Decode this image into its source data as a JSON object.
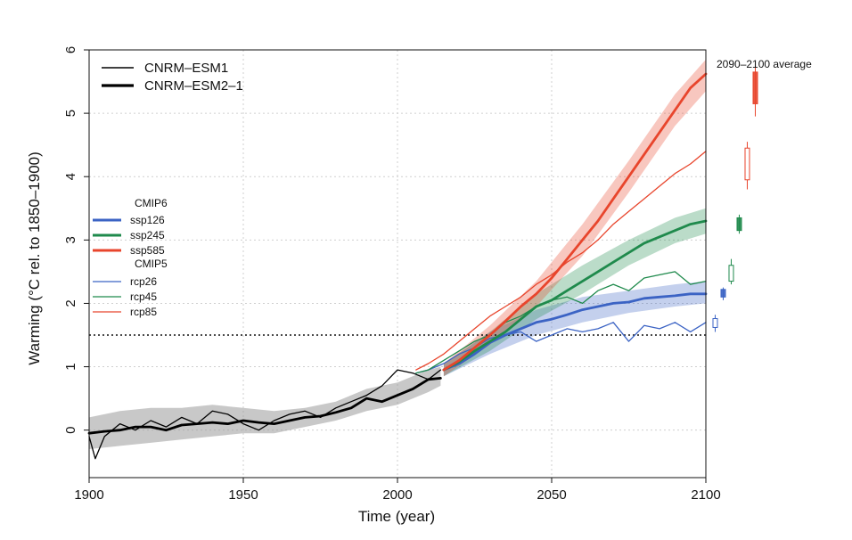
{
  "chart_data": {
    "type": "line",
    "title": "",
    "xlabel": "Time (year)",
    "ylabel": "Warming (°C rel. to 1850–1900)",
    "xlim": [
      1900,
      2100
    ],
    "ylim": [
      -0.75,
      6
    ],
    "xticks": [
      "1900",
      "1950",
      "2000",
      "2050",
      "2100"
    ],
    "yticks": [
      "0",
      "1",
      "2",
      "3",
      "4",
      "5",
      "6"
    ],
    "grid": true,
    "reference_line": 1.5,
    "legend_top": {
      "placement": "top-left",
      "entries": [
        {
          "label": "CNRM–ESM1",
          "style": "thin"
        },
        {
          "label": "CNRM–ESM2–1",
          "style": "thick"
        }
      ]
    },
    "legend_scenarios": {
      "placement": "center-left",
      "groups": [
        {
          "title": "CMIP6",
          "entries": [
            {
              "label": "ssp126",
              "color": "#3b63c4"
            },
            {
              "label": "ssp245",
              "color": "#1f8a4c"
            },
            {
              "label": "ssp585",
              "color": "#e8452c"
            }
          ]
        },
        {
          "title": "CMIP5",
          "entries": [
            {
              "label": "rcp26",
              "color": "#3b63c4"
            },
            {
              "label": "rcp45",
              "color": "#1f8a4c"
            },
            {
              "label": "rcp85",
              "color": "#e8452c"
            }
          ]
        }
      ]
    },
    "series": [
      {
        "key": "hist_esm2",
        "style": "thick",
        "color": "#000000",
        "x": [
          1900,
          1905,
          1910,
          1915,
          1920,
          1925,
          1930,
          1935,
          1940,
          1945,
          1950,
          1955,
          1960,
          1965,
          1970,
          1975,
          1980,
          1985,
          1990,
          1995,
          2000,
          2005,
          2010,
          2014
        ],
        "y": [
          -0.05,
          -0.02,
          0.0,
          0.05,
          0.05,
          0.0,
          0.08,
          0.1,
          0.12,
          0.1,
          0.15,
          0.12,
          0.1,
          0.15,
          0.2,
          0.22,
          0.28,
          0.35,
          0.5,
          0.45,
          0.55,
          0.65,
          0.8,
          0.82
        ]
      },
      {
        "key": "hist_esm1",
        "style": "thin",
        "color": "#000000",
        "x": [
          1900,
          1902,
          1905,
          1910,
          1915,
          1920,
          1925,
          1930,
          1935,
          1940,
          1945,
          1950,
          1955,
          1960,
          1965,
          1970,
          1975,
          1980,
          1985,
          1990,
          1995,
          2000,
          2005,
          2010,
          2014
        ],
        "y": [
          -0.1,
          -0.45,
          -0.1,
          0.1,
          0.0,
          0.15,
          0.05,
          0.2,
          0.1,
          0.3,
          0.25,
          0.1,
          0.0,
          0.15,
          0.25,
          0.3,
          0.2,
          0.35,
          0.45,
          0.55,
          0.7,
          0.95,
          0.9,
          0.8,
          0.95
        ]
      },
      {
        "key": "ssp126",
        "style": "thick",
        "color": "#3b63c4",
        "x": [
          2015,
          2020,
          2025,
          2030,
          2035,
          2040,
          2045,
          2050,
          2055,
          2060,
          2065,
          2070,
          2075,
          2080,
          2085,
          2090,
          2095,
          2100
        ],
        "y": [
          0.95,
          1.05,
          1.2,
          1.38,
          1.5,
          1.6,
          1.7,
          1.75,
          1.82,
          1.9,
          1.95,
          2.0,
          2.02,
          2.08,
          2.1,
          2.12,
          2.15,
          2.15
        ]
      },
      {
        "key": "ssp245",
        "style": "thick",
        "color": "#1f8a4c",
        "x": [
          2015,
          2020,
          2025,
          2030,
          2035,
          2040,
          2045,
          2050,
          2055,
          2060,
          2065,
          2070,
          2075,
          2080,
          2085,
          2090,
          2095,
          2100
        ],
        "y": [
          0.95,
          1.08,
          1.25,
          1.4,
          1.55,
          1.75,
          1.95,
          2.05,
          2.2,
          2.35,
          2.5,
          2.65,
          2.8,
          2.95,
          3.05,
          3.15,
          3.25,
          3.3
        ]
      },
      {
        "key": "ssp585",
        "style": "thick",
        "color": "#e8452c",
        "x": [
          2015,
          2020,
          2025,
          2030,
          2035,
          2040,
          2045,
          2050,
          2055,
          2060,
          2065,
          2070,
          2075,
          2080,
          2085,
          2090,
          2095,
          2100
        ],
        "y": [
          0.95,
          1.1,
          1.3,
          1.5,
          1.72,
          1.95,
          2.15,
          2.4,
          2.7,
          3.0,
          3.3,
          3.65,
          4.0,
          4.35,
          4.7,
          5.05,
          5.4,
          5.62
        ]
      },
      {
        "key": "rcp26",
        "style": "thin",
        "color": "#3b63c4",
        "x": [
          2006,
          2010,
          2015,
          2020,
          2025,
          2030,
          2035,
          2040,
          2045,
          2050,
          2055,
          2060,
          2065,
          2070,
          2075,
          2080,
          2085,
          2090,
          2095,
          2100
        ],
        "y": [
          0.9,
          0.95,
          1.05,
          1.2,
          1.3,
          1.45,
          1.5,
          1.55,
          1.4,
          1.5,
          1.6,
          1.55,
          1.6,
          1.7,
          1.4,
          1.65,
          1.6,
          1.7,
          1.55,
          1.7
        ]
      },
      {
        "key": "rcp45",
        "style": "thin",
        "color": "#1f8a4c",
        "x": [
          2006,
          2010,
          2015,
          2020,
          2025,
          2030,
          2035,
          2040,
          2045,
          2050,
          2055,
          2060,
          2065,
          2070,
          2075,
          2080,
          2085,
          2090,
          2095,
          2100
        ],
        "y": [
          0.9,
          0.95,
          1.1,
          1.25,
          1.4,
          1.5,
          1.7,
          1.8,
          1.95,
          2.05,
          2.1,
          2.0,
          2.2,
          2.3,
          2.2,
          2.4,
          2.45,
          2.5,
          2.3,
          2.35
        ]
      },
      {
        "key": "rcp85",
        "style": "thin",
        "color": "#e8452c",
        "x": [
          2006,
          2010,
          2015,
          2020,
          2025,
          2030,
          2035,
          2040,
          2045,
          2050,
          2055,
          2060,
          2065,
          2070,
          2075,
          2080,
          2085,
          2090,
          2095,
          2100
        ],
        "y": [
          0.95,
          1.05,
          1.2,
          1.4,
          1.6,
          1.8,
          1.95,
          2.1,
          2.3,
          2.45,
          2.65,
          2.8,
          3.0,
          3.25,
          3.45,
          3.65,
          3.85,
          4.05,
          4.2,
          4.4
        ]
      }
    ],
    "bands": [
      {
        "key": "hist",
        "color": "#9a9a9a",
        "x": [
          1900,
          1910,
          1920,
          1930,
          1940,
          1950,
          1960,
          1970,
          1980,
          1990,
          2000,
          2010,
          2014
        ],
        "low": [
          -0.3,
          -0.25,
          -0.2,
          -0.15,
          -0.1,
          -0.05,
          -0.05,
          0.05,
          0.15,
          0.3,
          0.4,
          0.6,
          0.7
        ],
        "high": [
          0.2,
          0.3,
          0.35,
          0.35,
          0.4,
          0.35,
          0.3,
          0.35,
          0.45,
          0.65,
          0.75,
          0.95,
          1.0
        ]
      },
      {
        "key": "ssp126",
        "color": "#3b63c4",
        "x": [
          2015,
          2030,
          2045,
          2060,
          2075,
          2090,
          2100
        ],
        "low": [
          0.85,
          1.2,
          1.5,
          1.7,
          1.85,
          1.95,
          2.0
        ],
        "high": [
          1.05,
          1.55,
          1.9,
          2.1,
          2.2,
          2.3,
          2.35
        ]
      },
      {
        "key": "ssp245",
        "color": "#1f8a4c",
        "x": [
          2015,
          2030,
          2045,
          2060,
          2075,
          2090,
          2100
        ],
        "low": [
          0.85,
          1.25,
          1.75,
          2.15,
          2.6,
          2.95,
          3.1
        ],
        "high": [
          1.05,
          1.55,
          2.15,
          2.6,
          3.0,
          3.35,
          3.5
        ]
      },
      {
        "key": "ssp585",
        "color": "#e8452c",
        "x": [
          2015,
          2030,
          2045,
          2060,
          2075,
          2090,
          2100
        ],
        "low": [
          0.85,
          1.35,
          1.95,
          2.75,
          3.75,
          4.8,
          5.35
        ],
        "high": [
          1.05,
          1.65,
          2.35,
          3.25,
          4.25,
          5.3,
          5.85
        ]
      }
    ],
    "average_2090_2100": {
      "title": "2090–2100 average",
      "boxes": [
        {
          "key": "rcp26",
          "color": "#3b63c4",
          "filled": false,
          "min": 1.55,
          "q1": 1.62,
          "q3": 1.76,
          "max": 1.82
        },
        {
          "key": "ssp126",
          "color": "#3b63c4",
          "filled": true,
          "min": 2.05,
          "q1": 2.1,
          "q3": 2.22,
          "max": 2.25
        },
        {
          "key": "rcp45",
          "color": "#1f8a4c",
          "filled": false,
          "min": 2.3,
          "q1": 2.35,
          "q3": 2.6,
          "max": 2.7
        },
        {
          "key": "ssp245",
          "color": "#1f8a4c",
          "filled": true,
          "min": 3.1,
          "q1": 3.15,
          "q3": 3.35,
          "max": 3.4
        },
        {
          "key": "rcp85",
          "color": "#e8452c",
          "filled": false,
          "min": 3.8,
          "q1": 3.95,
          "q3": 4.45,
          "max": 4.55
        },
        {
          "key": "ssp585",
          "color": "#e8452c",
          "filled": true,
          "min": 4.95,
          "q1": 5.15,
          "q3": 5.65,
          "max": 5.75
        }
      ]
    }
  }
}
